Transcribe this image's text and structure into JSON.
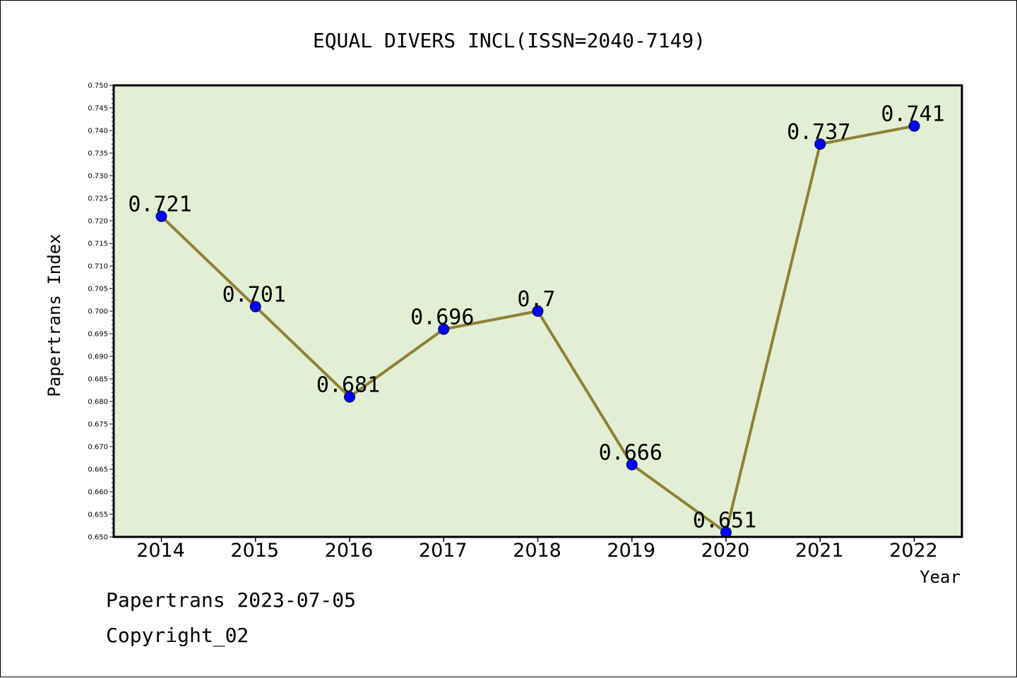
{
  "chart_data": {
    "type": "line",
    "title": "EQUAL DIVERS INCL(ISSN=2040-7149)",
    "xlabel": "Year",
    "ylabel": "Papertrans Index",
    "categories": [
      "2014",
      "2015",
      "2016",
      "2017",
      "2018",
      "2019",
      "2020",
      "2021",
      "2022"
    ],
    "values": [
      0.721,
      0.701,
      0.681,
      0.696,
      0.7,
      0.666,
      0.651,
      0.737,
      0.741
    ],
    "data_labels": [
      "0.721",
      "0.701",
      "0.681",
      "0.696",
      "0.7",
      "0.666",
      "0.651",
      "0.737",
      "0.741"
    ],
    "ylim": [
      0.65,
      0.75
    ],
    "ytick_step": 0.005,
    "ytick_labels": [
      "0.650",
      "0.655",
      "0.660",
      "0.665",
      "0.670",
      "0.675",
      "0.680",
      "0.685",
      "0.690",
      "0.695",
      "0.700",
      "0.705",
      "0.710",
      "0.715",
      "0.720",
      "0.725",
      "0.730",
      "0.735",
      "0.740",
      "0.745",
      "0.750"
    ],
    "grid": false,
    "colors": {
      "plot_background": "#e2efd4",
      "line": "#8f8036",
      "marker": "#0000ff"
    }
  },
  "footer": {
    "date_line": "Papertrans 2023-07-05",
    "copyright": "Copyright_02"
  }
}
